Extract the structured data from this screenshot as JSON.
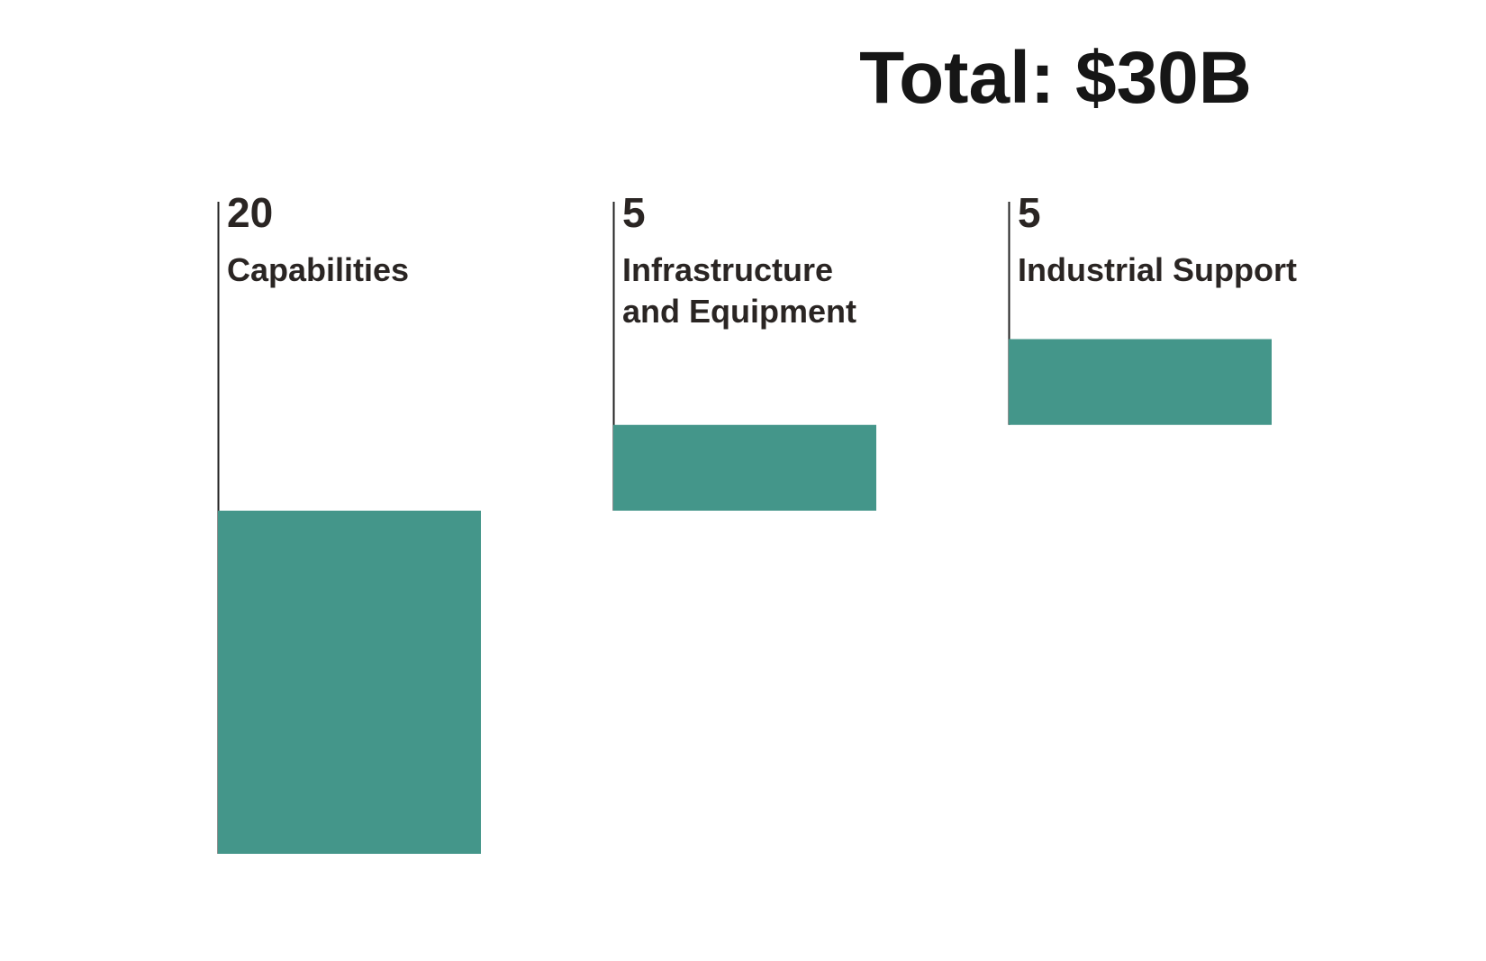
{
  "chart_data": {
    "type": "bar",
    "variant": "waterfall",
    "title": "Total: $30B",
    "total": 30,
    "unit": "$B",
    "categories": [
      "Capabilities",
      "Infrastructure and Equipment",
      "Industrial Support"
    ],
    "label_lines": [
      [
        "Capabilities"
      ],
      [
        "Infrastructure",
        "and Equipment"
      ],
      [
        "Industrial Support"
      ]
    ],
    "values": [
      20,
      5,
      5
    ],
    "value_labels": [
      "20",
      "5",
      "5"
    ],
    "xlabel": "",
    "ylabel": "",
    "grid": false,
    "legend": false
  },
  "colors": {
    "bar": "#44968a",
    "text": "#2a2523",
    "title": "#161616",
    "axis_line": "#222222",
    "background": "#ffffff"
  }
}
